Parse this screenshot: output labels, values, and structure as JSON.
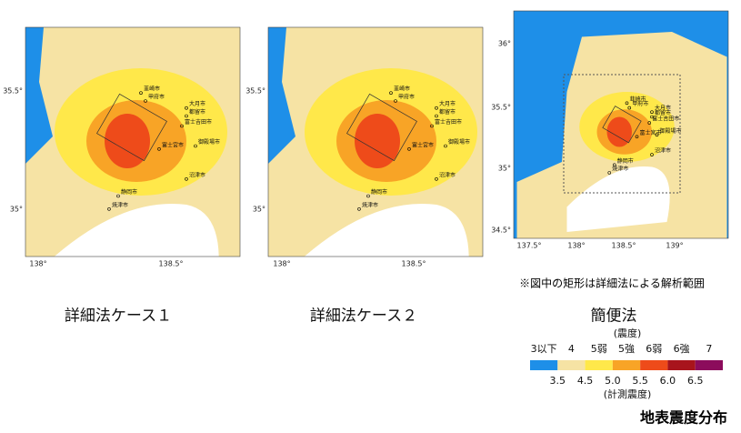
{
  "maps": [
    {
      "caption": "詳細法ケース１",
      "lat_labels": [
        "35.5°",
        "35°"
      ],
      "lon_labels": [
        "138°",
        "138.5°"
      ],
      "cities": [
        "韮崎市",
        "甲府市",
        "大月市",
        "都留市",
        "富士吉田市",
        "御殿場市",
        "富士宮市",
        "沼津市",
        "静岡市",
        "焼津市"
      ]
    },
    {
      "caption": "詳細法ケース２",
      "lat_labels": [
        "35.5°",
        "35°"
      ],
      "lon_labels": [
        "138°",
        "138.5°"
      ],
      "cities": [
        "韮崎市",
        "甲府市",
        "大月市",
        "都留市",
        "富士吉田市",
        "御殿場市",
        "富士宮市",
        "沼津市",
        "静岡市",
        "焼津市"
      ]
    },
    {
      "caption": "簡便法",
      "lat_labels": [
        "36°",
        "35.5°",
        "35°",
        "34.5°"
      ],
      "lon_labels": [
        "137.5°",
        "138°",
        "138.5°",
        "139°"
      ],
      "cities": [
        "韮崎市",
        "甲府市",
        "大月市",
        "都留市",
        "富士吉田市",
        "御殿場市",
        "富士宮市",
        "沼津市",
        "静岡市",
        "焼津市"
      ]
    }
  ],
  "note": "※図中の矩形は詳細法による解析範囲",
  "legend": {
    "title": "(震度)",
    "classes": [
      {
        "label": "3以下",
        "color": "#1e8fe8"
      },
      {
        "label": "4",
        "color": "#f6e3a4"
      },
      {
        "label": "5弱",
        "color": "#ffe84a"
      },
      {
        "label": "5強",
        "color": "#f8a426"
      },
      {
        "label": "6弱",
        "color": "#ee4b1a"
      },
      {
        "label": "6強",
        "color": "#a8141c"
      },
      {
        "label": "7",
        "color": "#8c0c5c"
      }
    ],
    "ticks": [
      "3.5",
      "4.5",
      "5.0",
      "5.5",
      "6.0",
      "6.5"
    ],
    "subtitle": "(計測震度)"
  },
  "footer": "地表震度分布"
}
